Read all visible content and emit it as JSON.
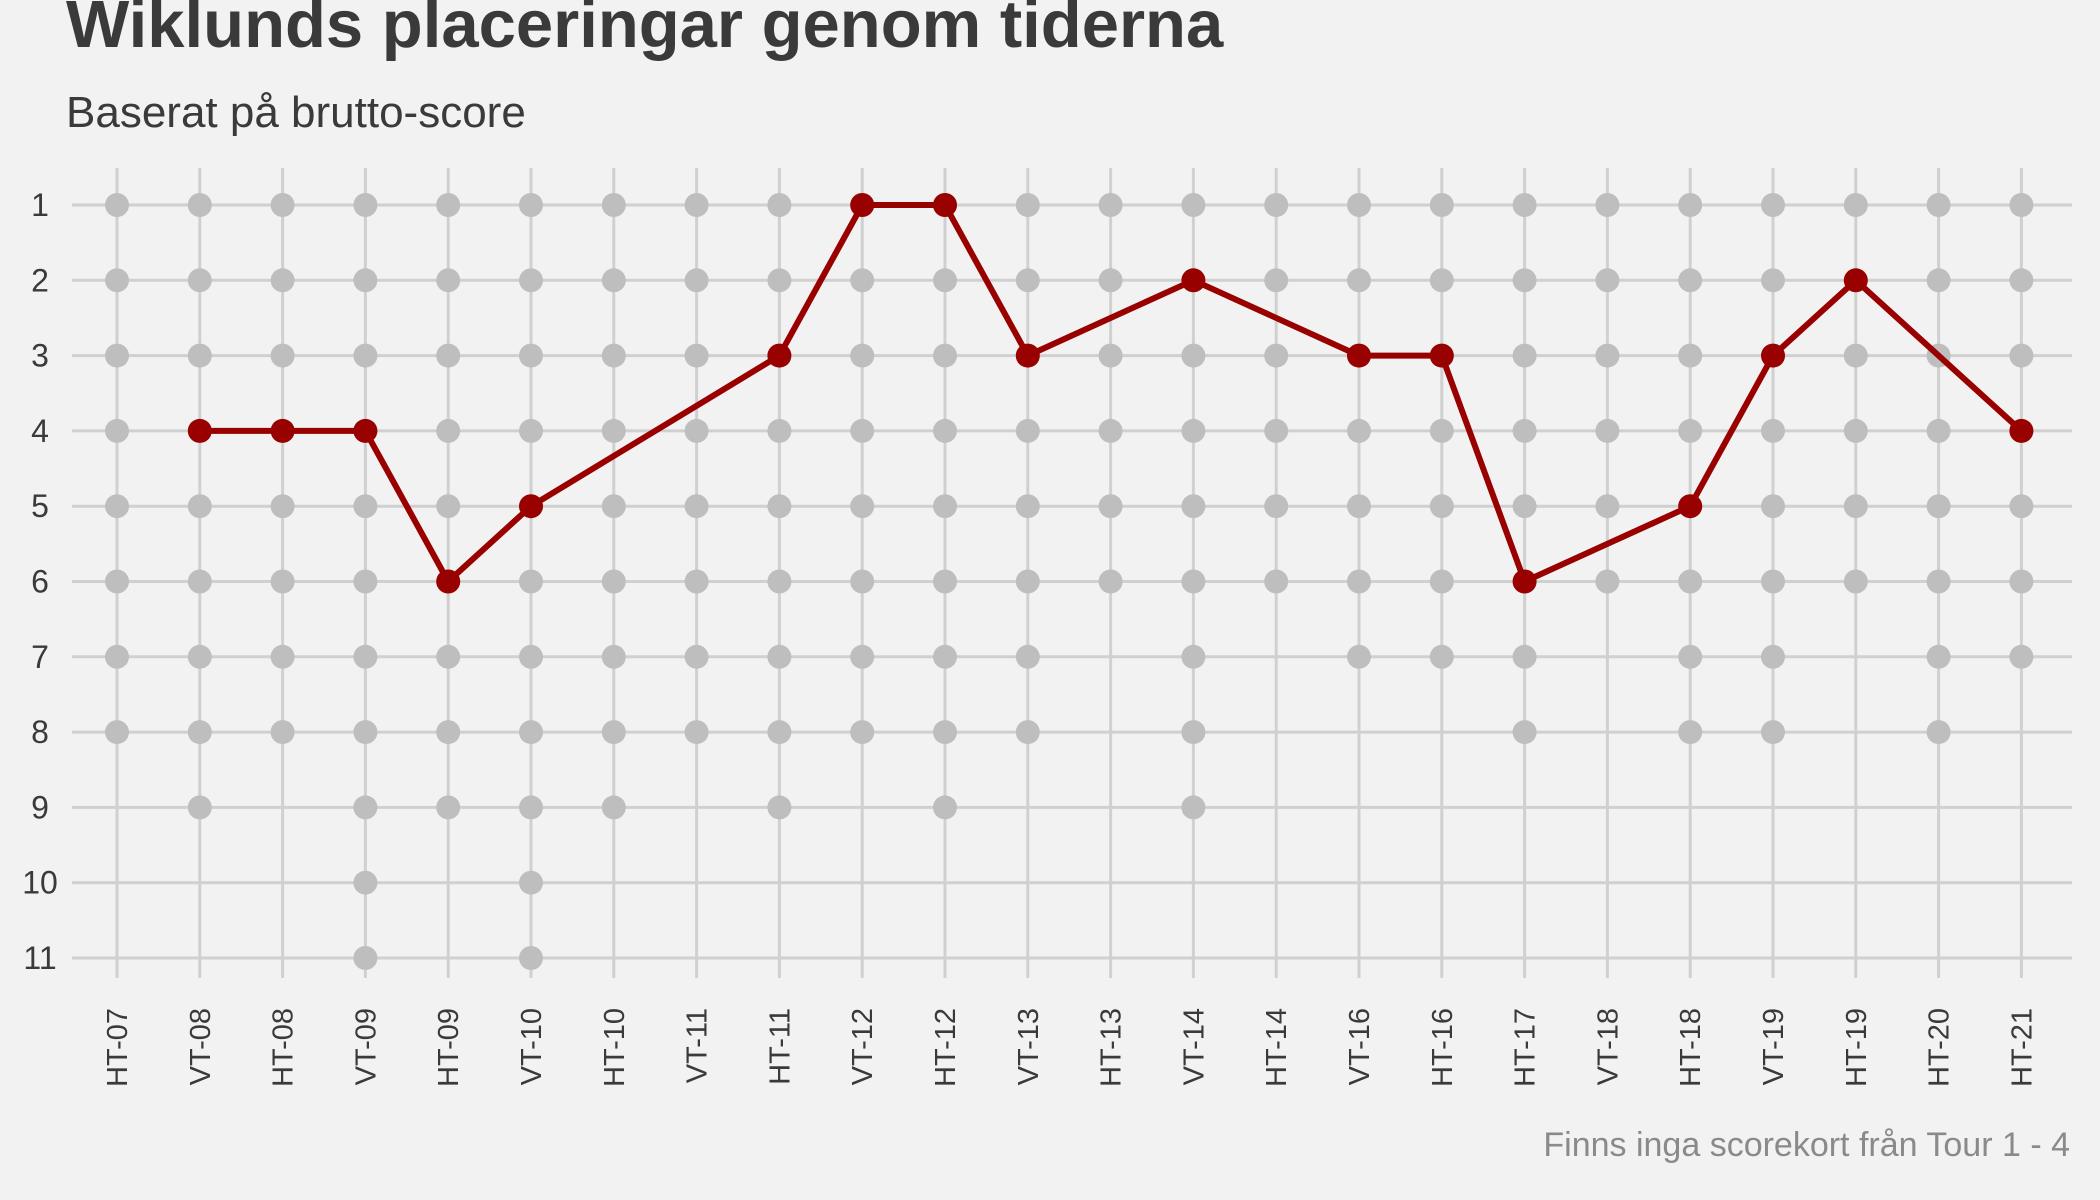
{
  "chart_data": {
    "type": "scatter",
    "title": "Wiklunds placeringar genom tiderna",
    "subtitle": "Baserat på brutto-score",
    "caption": "Finns inga scorekort från Tour 1 - 4",
    "xlabel": "",
    "ylabel": "",
    "y_reversed": true,
    "ylim": [
      1,
      11
    ],
    "y_ticks": [
      1,
      2,
      3,
      4,
      5,
      6,
      7,
      8,
      9,
      10,
      11
    ],
    "grid": true,
    "legend": "none",
    "categories": [
      "HT-07",
      "VT-08",
      "HT-08",
      "VT-09",
      "HT-09",
      "VT-10",
      "HT-10",
      "VT-11",
      "HT-11",
      "VT-12",
      "HT-12",
      "VT-13",
      "HT-13",
      "VT-14",
      "HT-14",
      "VT-16",
      "HT-16",
      "HT-17",
      "VT-18",
      "HT-18",
      "VT-19",
      "HT-19",
      "HT-20",
      "HT-21"
    ],
    "participants": [
      8,
      9,
      8,
      11,
      9,
      11,
      9,
      8,
      9,
      8,
      9,
      8,
      6,
      9,
      6,
      7,
      7,
      8,
      6,
      8,
      8,
      6,
      8,
      7
    ],
    "series": [
      {
        "values": [
          null,
          4,
          4,
          4,
          6,
          5,
          null,
          null,
          3,
          1,
          1,
          3,
          null,
          2,
          null,
          3,
          3,
          6,
          null,
          5,
          3,
          2,
          null,
          4
        ]
      }
    ],
    "colors": {
      "highlight": "#990000",
      "field": "#bebebe",
      "grid": "#d0d0d0",
      "background": "#f2f2f2"
    }
  }
}
